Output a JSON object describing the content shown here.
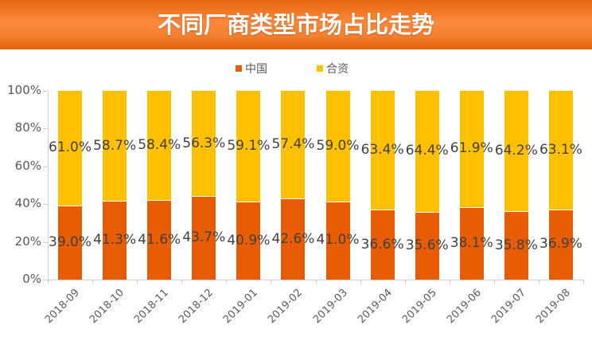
{
  "header": {
    "title": "不同厂商类型市场占比走势"
  },
  "legend": [
    {
      "label": "中国",
      "color": "#e85d04"
    },
    {
      "label": "合资",
      "color": "#ffc000"
    }
  ],
  "y_axis": {
    "ticks": [
      "0%",
      "20%",
      "40%",
      "60%",
      "80%",
      "100%"
    ]
  },
  "chart_data": {
    "type": "bar",
    "stacked": true,
    "percent_stacked": true,
    "title": "不同厂商类型市场占比走势",
    "xlabel": "",
    "ylabel": "",
    "ylim": [
      0,
      100
    ],
    "y_tick_labels": [
      "0%",
      "20%",
      "40%",
      "60%",
      "80%",
      "100%"
    ],
    "legend_position": "top",
    "grid": false,
    "categories": [
      "2018-09",
      "2018-10",
      "2018-11",
      "2018-12",
      "2019-01",
      "2019-02",
      "2019-03",
      "2019-04",
      "2019-05",
      "2019-06",
      "2019-07",
      "2019-08"
    ],
    "series": [
      {
        "name": "中国",
        "color": "#e85d04",
        "values": [
          39.0,
          41.3,
          41.6,
          43.7,
          40.9,
          42.6,
          41.0,
          36.6,
          35.6,
          38.1,
          35.8,
          36.9
        ],
        "labels": [
          "39.0%",
          "41.3%",
          "41.6%",
          "43.7%",
          "40.9%",
          "42.6%",
          "41.0%",
          "36.6%",
          "35.6%",
          "38.1%",
          "35.8%",
          "36.9%"
        ]
      },
      {
        "name": "合资",
        "color": "#ffc000",
        "values": [
          61.0,
          58.7,
          58.4,
          56.3,
          59.1,
          57.4,
          59.0,
          63.4,
          64.4,
          61.9,
          64.2,
          63.1
        ],
        "labels": [
          "61.0%",
          "58.7%",
          "58.4%",
          "56.3%",
          "59.1%",
          "57.4%",
          "59.0%",
          "63.4%",
          "64.4%",
          "61.9%",
          "64.2%",
          "63.1%"
        ]
      }
    ]
  }
}
